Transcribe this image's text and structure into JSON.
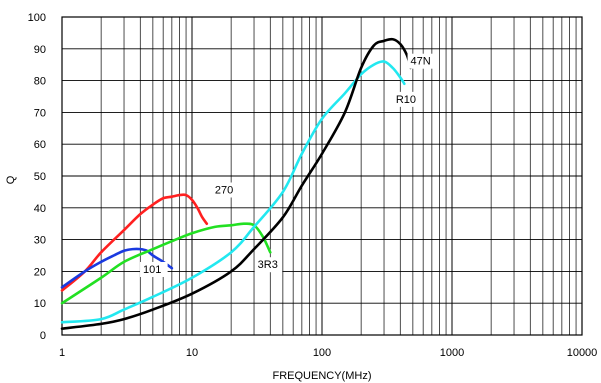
{
  "chart_data": {
    "type": "line",
    "title": "",
    "xlabel": "FREQUENCY(MHz)",
    "ylabel": "Q",
    "x_scale": "log",
    "xlim": [
      1,
      10000
    ],
    "ylim": [
      0,
      100
    ],
    "x_tick_labels": [
      "1",
      "10",
      "100",
      "1000",
      "10000"
    ],
    "y_tick_labels": [
      "0",
      "10",
      "20",
      "30",
      "40",
      "50",
      "60",
      "70",
      "80",
      "90",
      "100"
    ],
    "grid": true,
    "series": [
      {
        "name": "270",
        "color": "#ff2020",
        "x": [
          1,
          1.5,
          2,
          3,
          4,
          5,
          6,
          7,
          8,
          9,
          10,
          11,
          12,
          13
        ],
        "y": [
          14,
          20,
          26,
          33,
          38,
          41,
          43,
          43.5,
          44,
          44,
          42.5,
          40,
          37,
          35
        ]
      },
      {
        "name": "101",
        "color": "#1a3ae0",
        "x": [
          1,
          1.5,
          2,
          2.5,
          3,
          3.5,
          4,
          4.5,
          5,
          6,
          7
        ],
        "y": [
          15,
          20,
          23,
          25,
          26.5,
          27,
          27,
          26.5,
          25,
          23,
          21
        ]
      },
      {
        "name": "3R3",
        "color": "#22e022",
        "x": [
          1,
          2,
          3,
          5,
          7,
          10,
          15,
          20,
          25,
          30,
          35,
          40
        ],
        "y": [
          10,
          18,
          23,
          27,
          29.5,
          32,
          34,
          34.5,
          35,
          34.5,
          31,
          26
        ]
      },
      {
        "name": "R10",
        "color": "#22e8f0",
        "x": [
          1,
          2,
          3,
          5,
          10,
          20,
          30,
          50,
          70,
          100,
          150,
          200,
          250,
          300,
          350,
          400,
          430
        ],
        "y": [
          4,
          5,
          8,
          12,
          18,
          26,
          34,
          45,
          57,
          68,
          76,
          82,
          85,
          86,
          84,
          81,
          79
        ]
      },
      {
        "name": "47N",
        "color": "#000000",
        "x": [
          1,
          2,
          3,
          5,
          10,
          20,
          30,
          50,
          70,
          100,
          150,
          200,
          250,
          300,
          350,
          400,
          450,
          480
        ],
        "y": [
          2,
          3.5,
          5,
          8,
          13,
          20,
          27,
          37,
          47,
          57,
          70,
          84,
          91,
          92.5,
          93,
          91.5,
          88,
          84
        ]
      }
    ],
    "labels": [
      "270",
      "101",
      "3R3",
      "R10",
      "47N"
    ]
  }
}
